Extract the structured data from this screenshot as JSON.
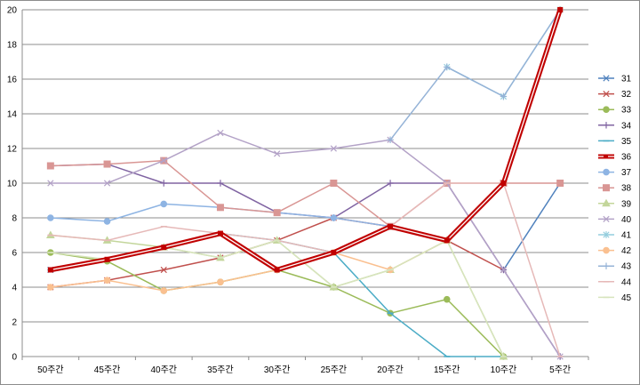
{
  "chart_data": {
    "type": "line",
    "title": "",
    "xlabel": "",
    "ylabel": "",
    "categories": [
      "50주간",
      "45주간",
      "40주간",
      "35주간",
      "30주간",
      "25주간",
      "20주간",
      "15주간",
      "10주간",
      "5주간"
    ],
    "ylim": [
      0,
      20
    ],
    "yticks": [
      0,
      2,
      4,
      6,
      8,
      10,
      12,
      14,
      16,
      18,
      20
    ],
    "grid": "horizontal",
    "legend_position": "right",
    "series": [
      {
        "name": "31",
        "color": "#4f81bd",
        "marker": "x",
        "values": [
          5,
          null,
          null,
          null,
          null,
          null,
          null,
          null,
          5,
          10
        ]
      },
      {
        "name": "32",
        "color": "#c0504d",
        "marker": "x",
        "values": [
          4,
          4.4,
          5,
          5.7,
          6.7,
          8,
          7.5,
          6.7,
          5,
          null
        ]
      },
      {
        "name": "33",
        "color": "#9bbb59",
        "marker": "circle",
        "values": [
          6,
          5.5,
          3.8,
          4.3,
          5,
          4,
          2.5,
          3.3,
          0,
          null
        ]
      },
      {
        "name": "34",
        "color": "#8064a2",
        "marker": "plus",
        "values": [
          11,
          11.1,
          10,
          10,
          8.3,
          8,
          10,
          10,
          5,
          0
        ]
      },
      {
        "name": "35",
        "color": "#4bacc6",
        "marker": "dash",
        "values": [
          5,
          null,
          6.3,
          7.1,
          6.7,
          6,
          2.5,
          0,
          0,
          null
        ]
      },
      {
        "name": "36",
        "color": "#c00000",
        "marker": "thick",
        "values": [
          5,
          5.6,
          6.3,
          7.1,
          5,
          6,
          7.5,
          6.7,
          10,
          20
        ]
      },
      {
        "name": "37",
        "color": "#8eb4e3",
        "marker": "circle",
        "values": [
          8,
          7.8,
          8.8,
          8.6,
          8.3,
          8,
          7.5,
          null,
          null,
          null
        ]
      },
      {
        "name": "38",
        "color": "#d99694",
        "marker": "square",
        "values": [
          11,
          11.1,
          11.3,
          8.6,
          8.3,
          10,
          7.5,
          10,
          10,
          10
        ]
      },
      {
        "name": "39",
        "color": "#c3d69b",
        "marker": "triangle",
        "values": [
          7,
          6.7,
          6.3,
          5.7,
          6.7,
          4,
          5,
          6.7,
          0,
          null
        ]
      },
      {
        "name": "40",
        "color": "#b3a2c7",
        "marker": "x",
        "values": [
          10,
          10,
          11.3,
          12.9,
          11.7,
          12,
          12.5,
          10,
          5,
          0
        ]
      },
      {
        "name": "41",
        "color": "#93cddd",
        "marker": "star",
        "values": [
          null,
          null,
          null,
          null,
          null,
          null,
          null,
          16.7,
          15,
          20
        ]
      },
      {
        "name": "42",
        "color": "#fac090",
        "marker": "circle",
        "values": [
          4,
          4.4,
          3.8,
          4.3,
          5,
          6,
          5,
          6.7,
          10,
          20
        ]
      },
      {
        "name": "43",
        "color": "#95b3d7",
        "marker": "plus",
        "values": [
          null,
          null,
          null,
          null,
          null,
          null,
          12.5,
          16.7,
          15,
          20
        ]
      },
      {
        "name": "44",
        "color": "#e6b9b8",
        "marker": "dash",
        "values": [
          7,
          6.7,
          7.5,
          7.1,
          6.7,
          6,
          7.5,
          10,
          10,
          0
        ]
      },
      {
        "name": "45",
        "color": "#d7e4bd",
        "marker": "dash",
        "values": [
          6,
          5.6,
          6.3,
          5.7,
          6.7,
          4,
          5,
          6.7,
          0,
          null
        ]
      }
    ]
  }
}
